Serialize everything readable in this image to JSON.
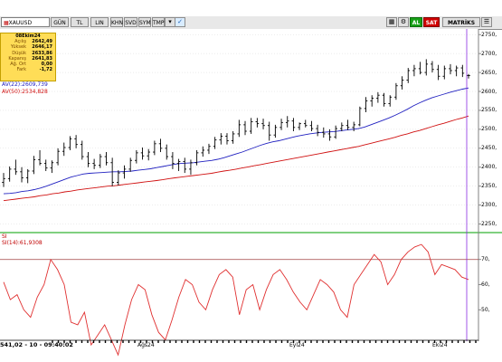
{
  "toolbar": {
    "symbol": "XAUUSD",
    "periods": [
      "GÜN",
      "TL",
      "LIN",
      "KHN",
      "SVD",
      "SYM",
      "TMP"
    ],
    "buttons": {
      "al": "AL",
      "sat": "SAT",
      "matriks": "MATRİKS"
    }
  },
  "info_panel": {
    "date": "08Ekim24",
    "rows": [
      {
        "label": "Açılış",
        "value": "2642,49"
      },
      {
        "label": "Yüksek",
        "value": "2646,17"
      },
      {
        "label": "Düşük",
        "value": "2633,86"
      },
      {
        "label": "Kapanış",
        "value": "2641,83"
      },
      {
        "label": "Ağ. Ort",
        "value": "0,00"
      },
      {
        "label": "Fark",
        "value": "-1,72"
      }
    ]
  },
  "indicators": {
    "ma22": {
      "label": "AV(22)",
      "value": ":2609,739",
      "color": "#2020c0"
    },
    "ma50": {
      "label": "AV(50)",
      "value": ":2534,828",
      "color": "#d01010"
    },
    "rsi": {
      "title": "SI",
      "label": "SI(14)",
      "value": ":61,9308",
      "color": "#e03030"
    }
  },
  "timestamp": "541,02 - 10 - 09:40:02",
  "chart_data": {
    "type": "line",
    "price_axis": {
      "ticks": [
        "2750,",
        "2700,",
        "2650,",
        "2600,",
        "2550,",
        "2500,",
        "2450,",
        "2400,",
        "2350,",
        "2300,",
        "2250,"
      ],
      "ylim": [
        2230,
        2760
      ]
    },
    "rsi_axis": {
      "ticks": [
        "70,",
        "60,",
        "50,"
      ],
      "levels": [
        70,
        30
      ]
    },
    "x_labels": [
      "Ağs24",
      "Eyl24",
      "Ekı24"
    ],
    "bars": [
      {
        "o": 2360,
        "h": 2385,
        "l": 2348,
        "c": 2370
      },
      {
        "o": 2370,
        "h": 2402,
        "l": 2362,
        "c": 2395
      },
      {
        "o": 2395,
        "h": 2420,
        "l": 2380,
        "c": 2388
      },
      {
        "o": 2388,
        "h": 2400,
        "l": 2360,
        "c": 2372
      },
      {
        "o": 2372,
        "h": 2395,
        "l": 2358,
        "c": 2390
      },
      {
        "o": 2390,
        "h": 2430,
        "l": 2382,
        "c": 2420
      },
      {
        "o": 2420,
        "h": 2445,
        "l": 2405,
        "c": 2410
      },
      {
        "o": 2410,
        "h": 2420,
        "l": 2390,
        "c": 2398
      },
      {
        "o": 2398,
        "h": 2418,
        "l": 2385,
        "c": 2412
      },
      {
        "o": 2412,
        "h": 2450,
        "l": 2405,
        "c": 2442
      },
      {
        "o": 2442,
        "h": 2465,
        "l": 2430,
        "c": 2452
      },
      {
        "o": 2452,
        "h": 2482,
        "l": 2445,
        "c": 2475
      },
      {
        "o": 2475,
        "h": 2485,
        "l": 2450,
        "c": 2460
      },
      {
        "o": 2460,
        "h": 2470,
        "l": 2420,
        "c": 2428
      },
      {
        "o": 2428,
        "h": 2440,
        "l": 2400,
        "c": 2410
      },
      {
        "o": 2410,
        "h": 2422,
        "l": 2395,
        "c": 2405
      },
      {
        "o": 2405,
        "h": 2435,
        "l": 2398,
        "c": 2428
      },
      {
        "o": 2428,
        "h": 2440,
        "l": 2405,
        "c": 2412
      },
      {
        "o": 2412,
        "h": 2425,
        "l": 2350,
        "c": 2360
      },
      {
        "o": 2360,
        "h": 2392,
        "l": 2352,
        "c": 2385
      },
      {
        "o": 2385,
        "h": 2405,
        "l": 2370,
        "c": 2395
      },
      {
        "o": 2395,
        "h": 2425,
        "l": 2388,
        "c": 2418
      },
      {
        "o": 2418,
        "h": 2445,
        "l": 2410,
        "c": 2438
      },
      {
        "o": 2438,
        "h": 2452,
        "l": 2420,
        "c": 2430
      },
      {
        "o": 2430,
        "h": 2448,
        "l": 2418,
        "c": 2440
      },
      {
        "o": 2440,
        "h": 2470,
        "l": 2432,
        "c": 2462
      },
      {
        "o": 2462,
        "h": 2475,
        "l": 2440,
        "c": 2450
      },
      {
        "o": 2450,
        "h": 2460,
        "l": 2420,
        "c": 2428
      },
      {
        "o": 2428,
        "h": 2440,
        "l": 2395,
        "c": 2410
      },
      {
        "o": 2410,
        "h": 2422,
        "l": 2390,
        "c": 2415
      },
      {
        "o": 2415,
        "h": 2425,
        "l": 2385,
        "c": 2395
      },
      {
        "o": 2395,
        "h": 2420,
        "l": 2380,
        "c": 2412
      },
      {
        "o": 2412,
        "h": 2445,
        "l": 2405,
        "c": 2438
      },
      {
        "o": 2438,
        "h": 2455,
        "l": 2428,
        "c": 2445
      },
      {
        "o": 2445,
        "h": 2462,
        "l": 2435,
        "c": 2455
      },
      {
        "o": 2455,
        "h": 2480,
        "l": 2448,
        "c": 2472
      },
      {
        "o": 2472,
        "h": 2490,
        "l": 2460,
        "c": 2482
      },
      {
        "o": 2482,
        "h": 2490,
        "l": 2460,
        "c": 2470
      },
      {
        "o": 2470,
        "h": 2495,
        "l": 2462,
        "c": 2488
      },
      {
        "o": 2488,
        "h": 2525,
        "l": 2480,
        "c": 2512
      },
      {
        "o": 2512,
        "h": 2522,
        "l": 2485,
        "c": 2495
      },
      {
        "o": 2495,
        "h": 2530,
        "l": 2488,
        "c": 2520
      },
      {
        "o": 2520,
        "h": 2530,
        "l": 2505,
        "c": 2515
      },
      {
        "o": 2515,
        "h": 2528,
        "l": 2500,
        "c": 2510
      },
      {
        "o": 2510,
        "h": 2520,
        "l": 2470,
        "c": 2485
      },
      {
        "o": 2485,
        "h": 2512,
        "l": 2478,
        "c": 2505
      },
      {
        "o": 2505,
        "h": 2528,
        "l": 2498,
        "c": 2518
      },
      {
        "o": 2518,
        "h": 2535,
        "l": 2505,
        "c": 2522
      },
      {
        "o": 2522,
        "h": 2530,
        "l": 2495,
        "c": 2505
      },
      {
        "o": 2505,
        "h": 2518,
        "l": 2498,
        "c": 2515
      },
      {
        "o": 2515,
        "h": 2525,
        "l": 2505,
        "c": 2510
      },
      {
        "o": 2510,
        "h": 2522,
        "l": 2495,
        "c": 2502
      },
      {
        "o": 2502,
        "h": 2512,
        "l": 2482,
        "c": 2492
      },
      {
        "o": 2492,
        "h": 2505,
        "l": 2478,
        "c": 2488
      },
      {
        "o": 2488,
        "h": 2500,
        "l": 2470,
        "c": 2480
      },
      {
        "o": 2480,
        "h": 2510,
        "l": 2475,
        "c": 2502
      },
      {
        "o": 2502,
        "h": 2518,
        "l": 2495,
        "c": 2510
      },
      {
        "o": 2510,
        "h": 2525,
        "l": 2498,
        "c": 2505
      },
      {
        "o": 2505,
        "h": 2520,
        "l": 2495,
        "c": 2512
      },
      {
        "o": 2512,
        "h": 2560,
        "l": 2508,
        "c": 2555
      },
      {
        "o": 2555,
        "h": 2585,
        "l": 2545,
        "c": 2575
      },
      {
        "o": 2575,
        "h": 2590,
        "l": 2560,
        "c": 2582
      },
      {
        "o": 2582,
        "h": 2598,
        "l": 2570,
        "c": 2590
      },
      {
        "o": 2590,
        "h": 2596,
        "l": 2560,
        "c": 2568
      },
      {
        "o": 2568,
        "h": 2590,
        "l": 2560,
        "c": 2585
      },
      {
        "o": 2585,
        "h": 2622,
        "l": 2578,
        "c": 2615
      },
      {
        "o": 2615,
        "h": 2640,
        "l": 2605,
        "c": 2630
      },
      {
        "o": 2630,
        "h": 2662,
        "l": 2622,
        "c": 2655
      },
      {
        "o": 2655,
        "h": 2670,
        "l": 2640,
        "c": 2660
      },
      {
        "o": 2660,
        "h": 2678,
        "l": 2645,
        "c": 2650
      },
      {
        "o": 2650,
        "h": 2685,
        "l": 2642,
        "c": 2672
      },
      {
        "o": 2672,
        "h": 2680,
        "l": 2650,
        "c": 2658
      },
      {
        "o": 2658,
        "h": 2670,
        "l": 2630,
        "c": 2640
      },
      {
        "o": 2640,
        "h": 2668,
        "l": 2632,
        "c": 2660
      },
      {
        "o": 2660,
        "h": 2672,
        "l": 2645,
        "c": 2655
      },
      {
        "o": 2655,
        "h": 2668,
        "l": 2640,
        "c": 2662
      },
      {
        "o": 2662,
        "h": 2670,
        "l": 2638,
        "c": 2648
      },
      {
        "o": 2642,
        "h": 2646,
        "l": 2634,
        "c": 2642
      }
    ],
    "ma22": [
      2330,
      2331,
      2333,
      2336,
      2338,
      2341,
      2345,
      2350,
      2356,
      2362,
      2368,
      2374,
      2378,
      2382,
      2384,
      2385,
      2386,
      2387,
      2388,
      2388,
      2389,
      2390,
      2392,
      2394,
      2396,
      2399,
      2402,
      2405,
      2408,
      2410,
      2411,
      2412,
      2414,
      2416,
      2418,
      2421,
      2425,
      2430,
      2435,
      2440,
      2446,
      2452,
      2458,
      2463,
      2467,
      2470,
      2474,
      2478,
      2482,
      2485,
      2488,
      2490,
      2492,
      2493,
      2494,
      2496,
      2498,
      2500,
      2502,
      2506,
      2512,
      2518,
      2524,
      2530,
      2537,
      2545,
      2553,
      2562,
      2570,
      2577,
      2583,
      2588,
      2593,
      2598,
      2602,
      2606,
      2609
    ],
    "ma50": [
      2312,
      2314,
      2316,
      2318,
      2320,
      2322,
      2325,
      2327,
      2330,
      2332,
      2335,
      2337,
      2340,
      2342,
      2344,
      2346,
      2348,
      2350,
      2351,
      2353,
      2355,
      2357,
      2359,
      2361,
      2363,
      2365,
      2367,
      2370,
      2372,
      2374,
      2376,
      2378,
      2380,
      2382,
      2384,
      2387,
      2390,
      2392,
      2395,
      2398,
      2401,
      2404,
      2407,
      2410,
      2413,
      2416,
      2419,
      2422,
      2425,
      2428,
      2431,
      2434,
      2437,
      2440,
      2443,
      2446,
      2449,
      2452,
      2455,
      2459,
      2463,
      2467,
      2471,
      2475,
      2479,
      2484,
      2488,
      2493,
      2497,
      2502,
      2507,
      2512,
      2516,
      2521,
      2526,
      2530,
      2535
    ],
    "rsi": [
      61,
      54,
      56,
      50,
      47,
      55,
      60,
      70,
      66,
      60,
      45,
      44,
      49,
      36,
      40,
      44,
      38,
      32,
      44,
      54,
      60,
      58,
      48,
      41,
      38,
      46,
      55,
      62,
      60,
      53,
      50,
      58,
      64,
      66,
      63,
      48,
      58,
      60,
      50,
      58,
      64,
      66,
      62,
      57,
      53,
      50,
      56,
      62,
      60,
      57,
      50,
      47,
      60,
      64,
      68,
      72,
      69,
      60,
      64,
      70,
      73,
      75,
      76,
      73,
      64,
      68,
      67,
      66,
      63,
      62
    ]
  }
}
